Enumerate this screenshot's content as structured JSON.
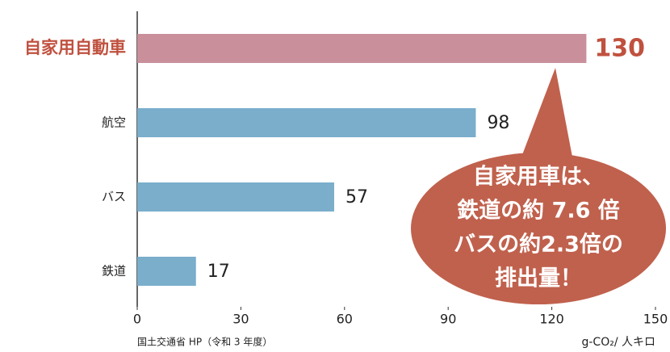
{
  "chart_data": {
    "type": "barh",
    "categories": [
      "自家用自動車",
      "航空",
      "バス",
      "鉄道"
    ],
    "values": [
      130,
      98,
      57,
      17
    ],
    "colors": [
      "#c9909b",
      "#7aaecb",
      "#7aaecb",
      "#7aaecb"
    ],
    "label_colors": [
      "#c0513f",
      "#222222",
      "#222222",
      "#222222"
    ],
    "xlim": [
      0,
      150
    ],
    "xticks": [
      0,
      30,
      60,
      90,
      120,
      150
    ],
    "x_label": "g-CO₂/ 人キロ",
    "source": "国土交通省 HP（令和 3 年度）",
    "annotation": [
      "自家用車は、",
      "鉄道の約 7.6 倍",
      "バスの約2.3倍の",
      "排出量！"
    ],
    "annotation_color": "#c0614d"
  }
}
